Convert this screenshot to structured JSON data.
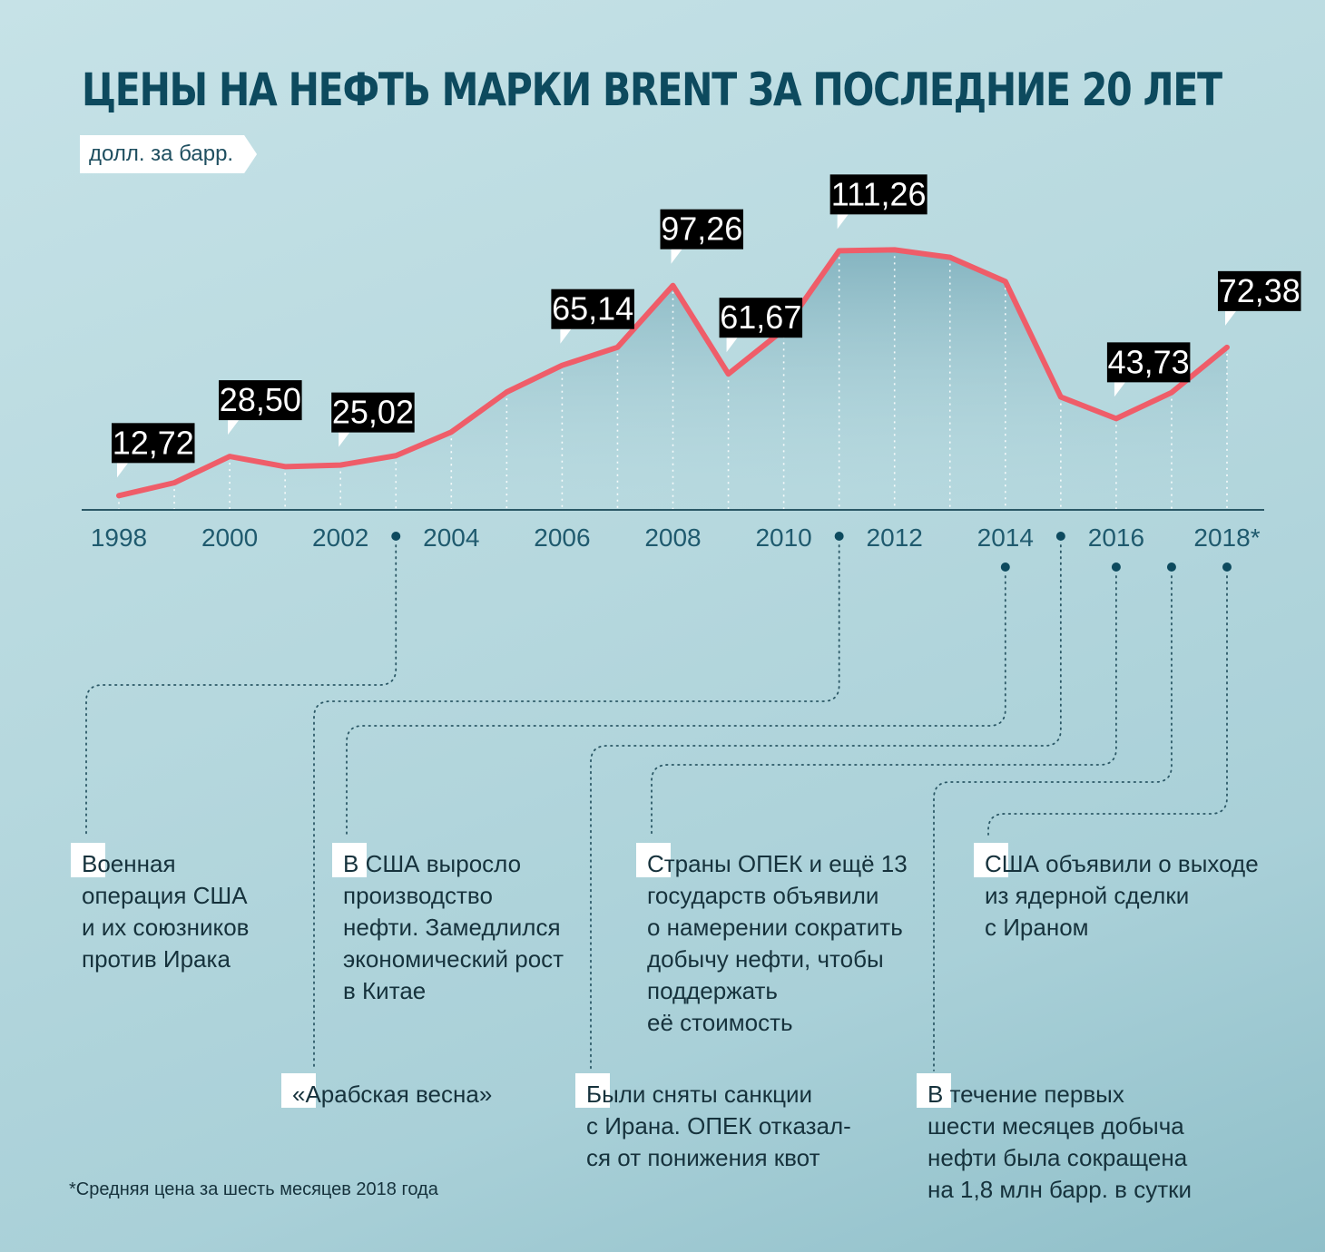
{
  "chart_data": {
    "type": "line",
    "title": "ЦЕНЫ НА НЕФТЬ МАРКИ BRENT ЗА ПОСЛЕДНИЕ 20 ЛЕТ",
    "unit": "долл. за барр.",
    "x": [
      1998,
      1999,
      2000,
      2001,
      2002,
      2003,
      2004,
      2005,
      2006,
      2007,
      2008,
      2009,
      2010,
      2011,
      2012,
      2013,
      2014,
      2015,
      2016,
      2017,
      2018
    ],
    "tick_labels": [
      "1998",
      "2000",
      "2002",
      "2004",
      "2006",
      "2008",
      "2010",
      "2012",
      "2014",
      "2016",
      "2018*"
    ],
    "series": [
      {
        "values": [
          12.72,
          17.9,
          28.5,
          24.4,
          25.02,
          28.8,
          38.3,
          54.4,
          65.14,
          72.4,
          97.26,
          61.67,
          79.5,
          111.26,
          111.6,
          108.6,
          98.9,
          52.4,
          43.73,
          54.2,
          72.38
        ]
      }
    ],
    "labeled_points": [
      {
        "x": 1998,
        "label": "12,72"
      },
      {
        "x": 2000,
        "label": "28,50"
      },
      {
        "x": 2002,
        "label": "25,02"
      },
      {
        "x": 2006,
        "label": "65,14"
      },
      {
        "x": 2008,
        "label": "97,26"
      },
      {
        "x": 2009,
        "label": "61,67"
      },
      {
        "x": 2011,
        "label": "111,26"
      },
      {
        "x": 2016,
        "label": "43,73"
      },
      {
        "x": 2018,
        "label": "72,38"
      }
    ],
    "event_markers": [
      2003,
      2011,
      2014,
      2015,
      2016,
      2017,
      2018
    ],
    "colors": {
      "line": "#ef5d69",
      "label_bg": "#000000",
      "label_text": "#ffffff",
      "axis_text": "#1f5a6e",
      "title": "#0d4a5e",
      "area": "#7fb0bd"
    },
    "grid": false
  },
  "annotations": [
    {
      "id": "iraq",
      "text": "Военная\nоперация США\nи их союзников\nпротив Ирака",
      "year": 2003
    },
    {
      "id": "usa-production",
      "text": "В США выросло\nпроизводство\nнефти. Замедлился\nэкономический рост\nв Китае",
      "year": 2014
    },
    {
      "id": "arab-spring",
      "text": "«Арабская весна»",
      "year": 2011
    },
    {
      "id": "opec-cut",
      "text": "Страны ОПЕК и ещё 13\nгосударств объявили\nо намерении сократить\nдобычу нефти, чтобы\nподдержать\nеё стоимость",
      "year": 2016
    },
    {
      "id": "iran-sanctions",
      "text": "Были сняты санкции\nс Ирана. ОПЕК отказал-\nся от понижения квот",
      "year": 2015
    },
    {
      "id": "iran-deal",
      "text": "США объявили о выходе\nиз ядерной сделки\nс Ираном",
      "year": 2018
    },
    {
      "id": "production-cut",
      "text": "В течение первых\nшести месяцев добыча\nнефти была сокращена\nна 1,8 млн барр. в сутки",
      "year": 2017
    }
  ],
  "footnote": "*Средняя цена за шесть месяцев 2018 года"
}
